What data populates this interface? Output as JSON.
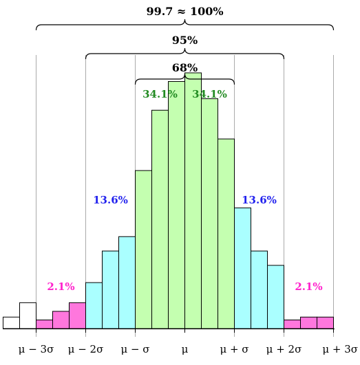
{
  "chart_data": {
    "type": "bar",
    "x_ticks": [
      "μ − 3σ",
      "μ − 2σ",
      "μ − σ",
      "μ",
      "μ + σ",
      "μ + 2σ",
      "μ + 3σ"
    ],
    "bins_per_sigma": 3,
    "x_range_sigma": [
      -11,
      9
    ],
    "values": [
      0.4,
      0.9,
      0.3,
      0.6,
      0.9,
      1.6,
      2.7,
      3.2,
      5.5,
      7.6,
      8.6,
      8.9,
      8.0,
      6.6,
      4.2,
      2.7,
      2.2,
      0.3,
      0.4,
      0.4
    ],
    "bar_colors": [
      "#ffffff",
      "#ffffff",
      "#ff77dd",
      "#ff77dd",
      "#ff77dd",
      "#aaffff",
      "#aaffff",
      "#aaffff",
      "#c4ffb0",
      "#c4ffb0",
      "#c4ffb0",
      "#c4ffb0",
      "#c4ffb0",
      "#c4ffb0",
      "#aaffff",
      "#aaffff",
      "#aaffff",
      "#ff77dd",
      "#ff77dd",
      "#ff77dd"
    ],
    "region_labels": [
      {
        "text": "2.1%",
        "color": "#ff22cc",
        "at_sigma": -2.5
      },
      {
        "text": "13.6%",
        "color": "#2222ee",
        "at_sigma": -1.5
      },
      {
        "text": "34.1%",
        "color": "#228b22",
        "at_sigma": -0.5
      },
      {
        "text": "34.1%",
        "color": "#228b22",
        "at_sigma": 0.5
      },
      {
        "text": "13.6%",
        "color": "#2222ee",
        "at_sigma": 1.5
      },
      {
        "text": "2.1%",
        "color": "#ff22cc",
        "at_sigma": 2.5
      }
    ],
    "braces": [
      {
        "label": "99.7 ≈ 100%",
        "from_sigma": -3,
        "to_sigma": 3
      },
      {
        "label": "95%",
        "from_sigma": -2,
        "to_sigma": 2
      },
      {
        "label": "68%",
        "from_sigma": -1,
        "to_sigma": 1
      }
    ],
    "ylim": [
      0,
      10
    ]
  }
}
